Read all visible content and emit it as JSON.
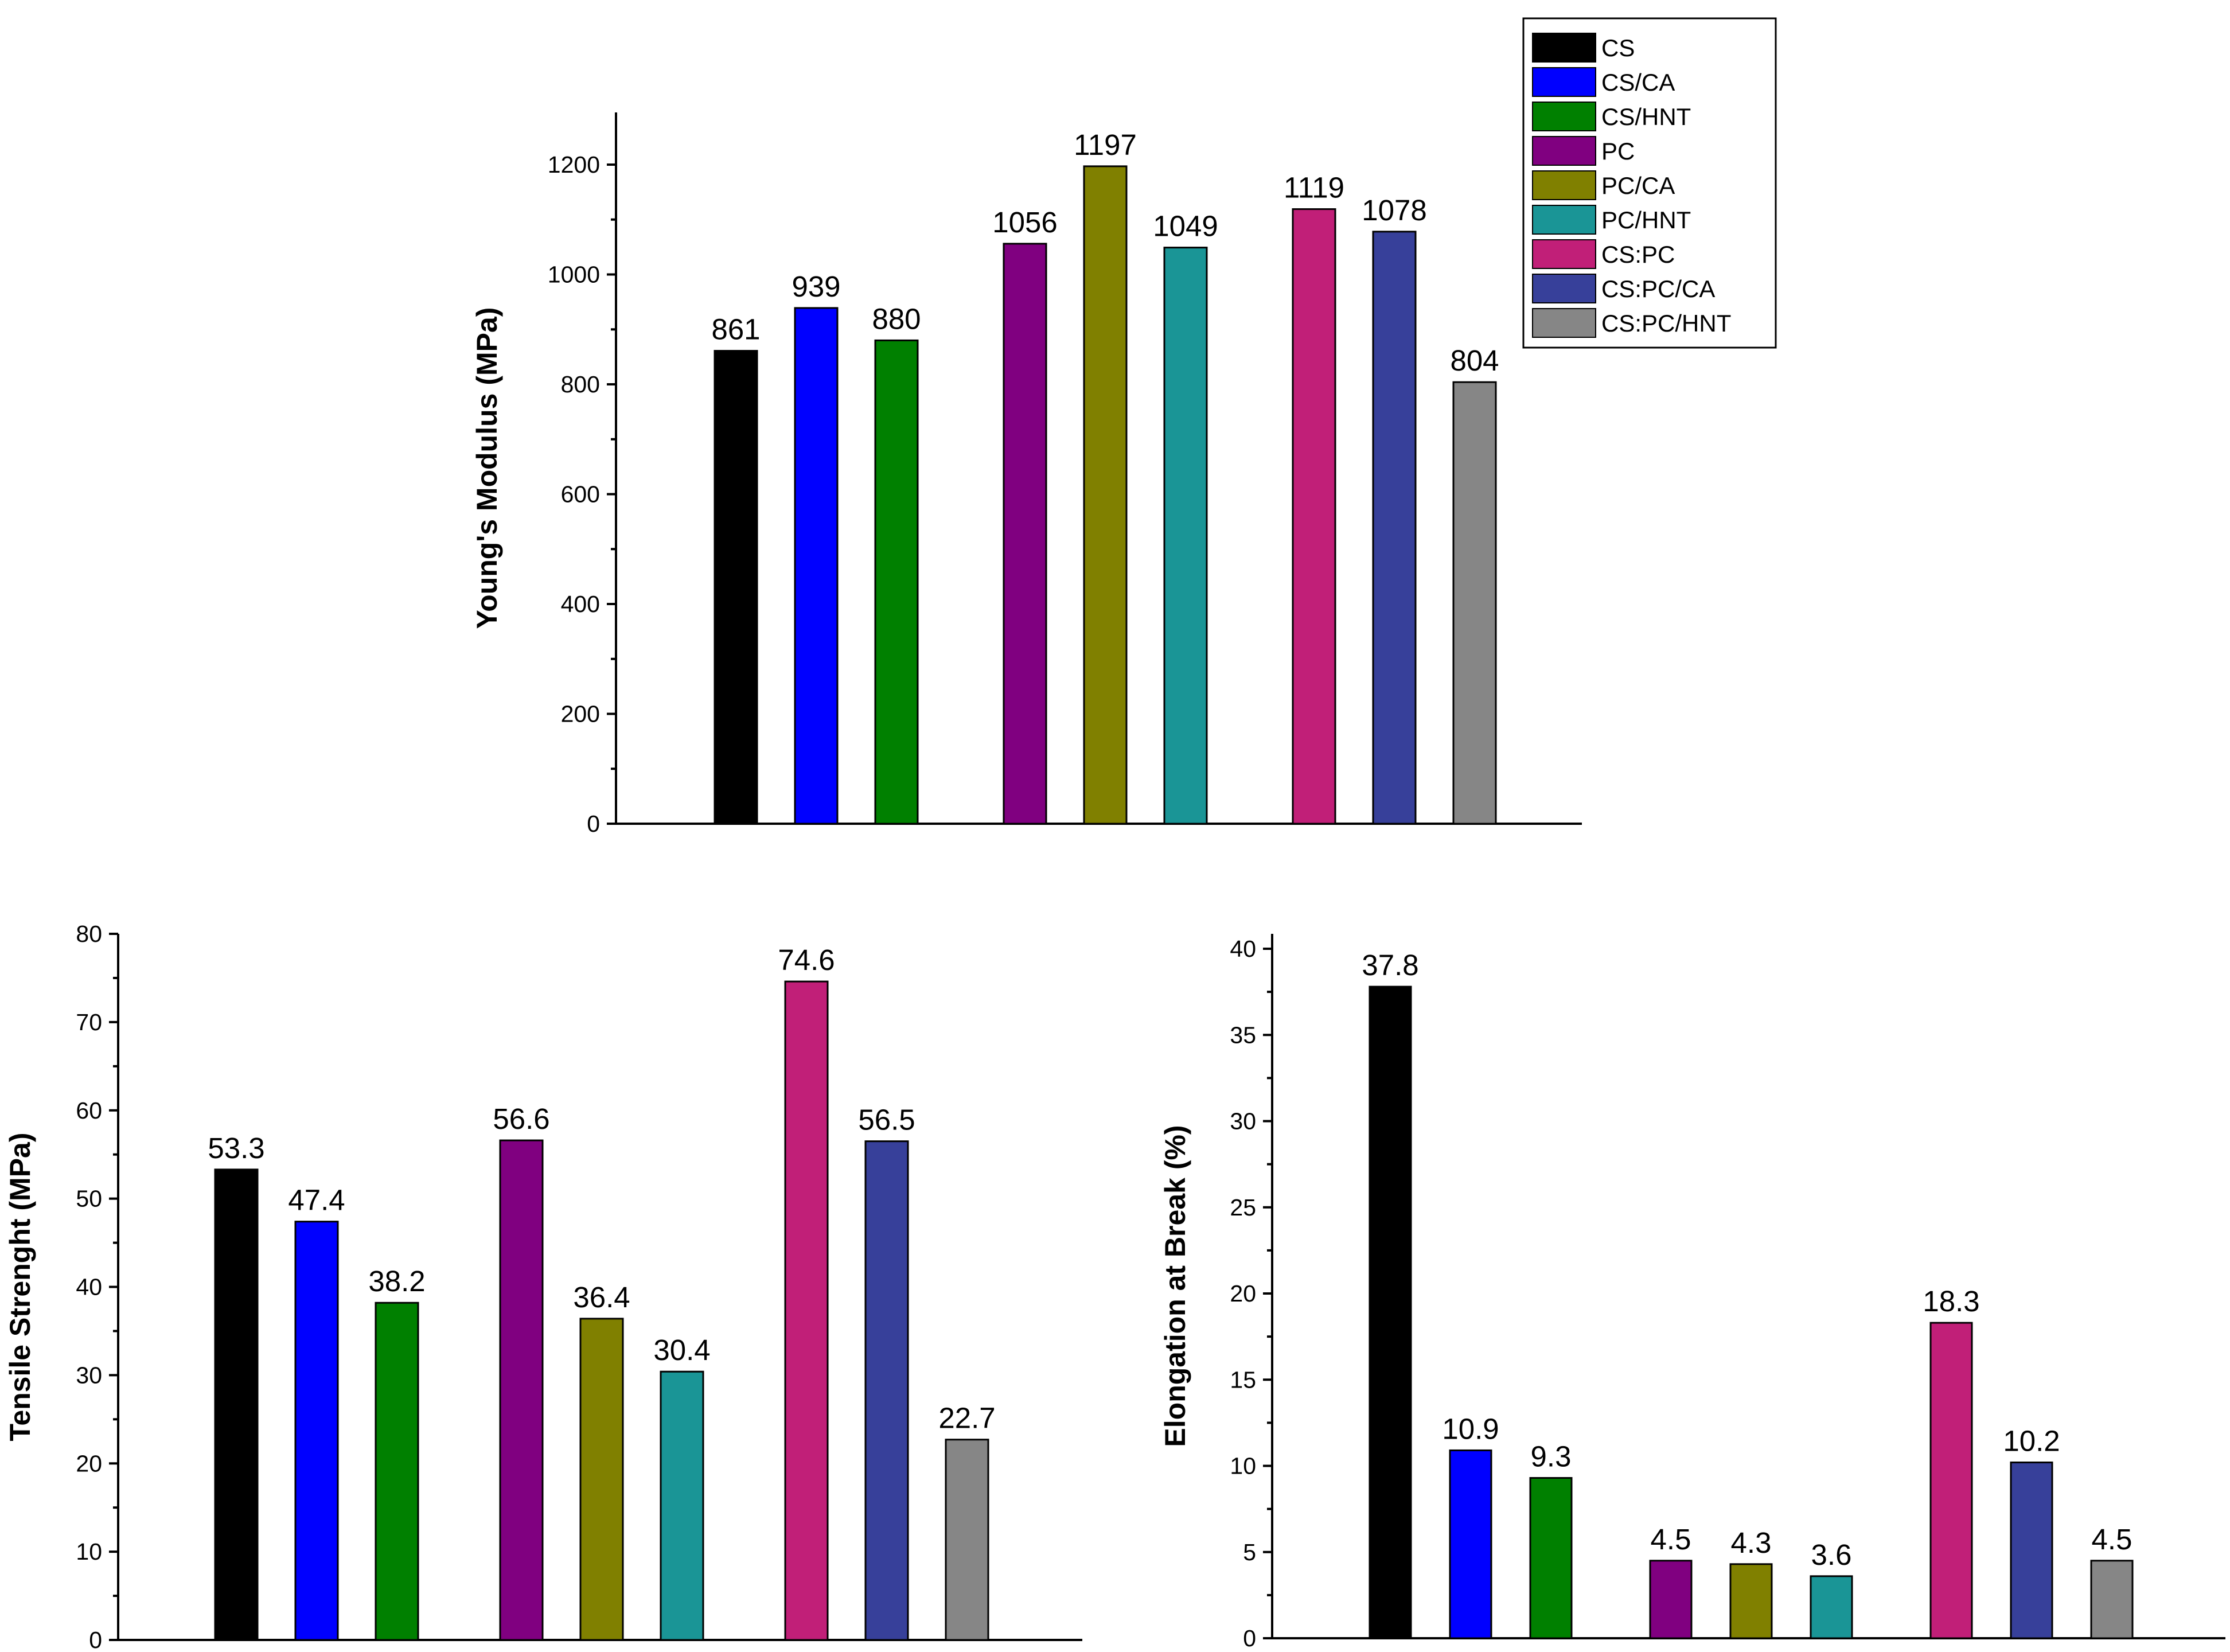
{
  "legend": {
    "items": [
      {
        "name": "CS",
        "color": "#000000"
      },
      {
        "name": "CS/CA",
        "color": "#0000FF"
      },
      {
        "name": "CS/HNT",
        "color": "#008000"
      },
      {
        "name": "PC",
        "color": "#800080"
      },
      {
        "name": "PC/CA",
        "color": "#808000"
      },
      {
        "name": "PC/HNT",
        "color": "#1A9596"
      },
      {
        "name": "CS:PC",
        "color": "#C11F78"
      },
      {
        "name": "CS:PC/CA",
        "color": "#37409A"
      },
      {
        "name": "CS:PC/HNT",
        "color": "#868686"
      }
    ]
  },
  "chart_data": [
    {
      "type": "bar",
      "id": "youngs-modulus",
      "categories": [
        "CS",
        "CS/CA",
        "CS/HNT",
        "PC",
        "PC/CA",
        "PC/HNT",
        "CS:PC",
        "CS:PC/CA",
        "CS:PC/HNT"
      ],
      "values": [
        861,
        939,
        880,
        1056,
        1197,
        1049,
        1119,
        1078,
        804
      ],
      "value_labels": [
        "861",
        "939",
        "880",
        "1056",
        "1197",
        "1049",
        "1119",
        "1078",
        "804"
      ],
      "ylabel": "Young's Modulus (MPa)",
      "xlabel": "",
      "ylim": [
        0,
        1290
      ],
      "yticks": [
        0,
        200,
        400,
        600,
        800,
        1000,
        1200
      ],
      "ytick_labels": [
        "0",
        "200",
        "400",
        "600",
        "800",
        "1000",
        "1200"
      ]
    },
    {
      "type": "bar",
      "id": "tensile-strength",
      "categories": [
        "CS",
        "CS/CA",
        "CS/HNT",
        "PC",
        "PC/CA",
        "PC/HNT",
        "CS:PC",
        "CS:PC/CA",
        "CS:PC/HNT"
      ],
      "values": [
        53.3,
        47.4,
        38.2,
        56.6,
        36.4,
        30.4,
        74.6,
        56.5,
        22.7
      ],
      "value_labels": [
        "53.3",
        "47.4",
        "38.2",
        "56.6",
        "36.4",
        "30.4",
        "74.6",
        "56.5",
        "22.7"
      ],
      "ylabel": "Tensile Strenght (MPa)",
      "xlabel": "",
      "ylim": [
        0,
        80
      ],
      "yticks": [
        0,
        10,
        20,
        30,
        40,
        50,
        60,
        70,
        80
      ],
      "ytick_labels": [
        "0",
        "10",
        "20",
        "30",
        "40",
        "50",
        "60",
        "70",
        "80"
      ]
    },
    {
      "type": "bar",
      "id": "elongation-at-break",
      "categories": [
        "CS",
        "CS/CA",
        "CS/HNT",
        "PC",
        "PC/CA",
        "PC/HNT",
        "CS:PC",
        "CS:PC/CA",
        "CS:PC/HNT"
      ],
      "values": [
        37.8,
        10.9,
        9.3,
        4.5,
        4.3,
        3.6,
        18.3,
        10.2,
        4.5
      ],
      "value_labels": [
        "37.8",
        "10.9",
        "9.3",
        "4.5",
        "4.3",
        "3.6",
        "18.3",
        "10.2",
        "4.5"
      ],
      "ylabel": "Elongation at Break (%)",
      "xlabel": "",
      "ylim": [
        0,
        41
      ],
      "yticks": [
        0,
        5,
        10,
        15,
        20,
        25,
        30,
        35,
        40
      ],
      "ytick_labels": [
        "0",
        "5",
        "10",
        "15",
        "20",
        "25",
        "30",
        "35",
        "40"
      ]
    }
  ]
}
